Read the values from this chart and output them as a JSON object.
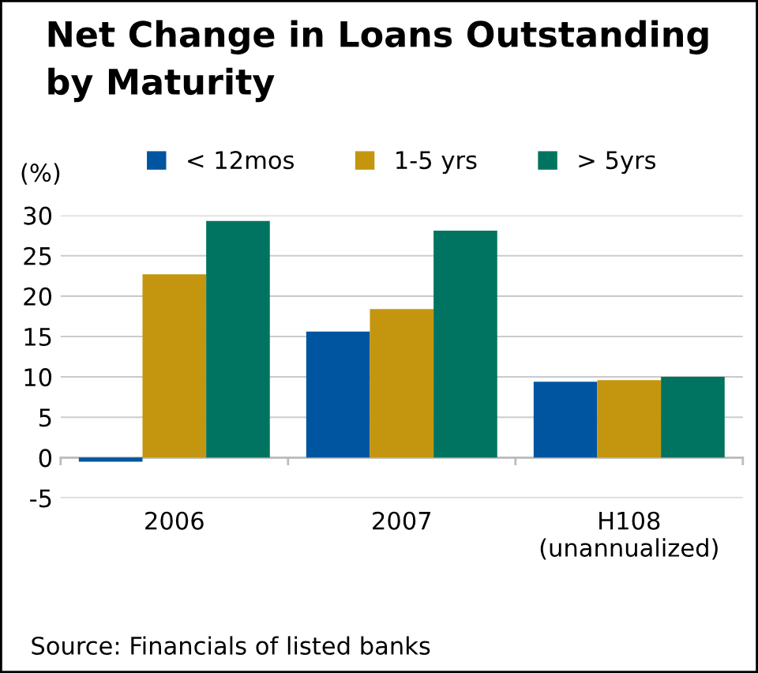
{
  "chart_data": {
    "type": "bar",
    "title": "Net Change in Loans Outstanding\nby Maturity",
    "ylabel": "(%)",
    "categories": [
      "2006",
      "2007",
      "H108\n(unannualized)"
    ],
    "series": [
      {
        "name": "< 12mos",
        "color": "#0055a0",
        "values": [
          -0.5,
          15.6,
          9.4
        ]
      },
      {
        "name": "1-5 yrs",
        "color": "#c4960f",
        "values": [
          22.7,
          18.4,
          9.6
        ]
      },
      {
        "name": "> 5yrs",
        "color": "#007460",
        "values": [
          29.3,
          28.1,
          10.0
        ]
      }
    ],
    "ylim": [
      -5,
      30
    ],
    "yticks": [
      -5,
      0,
      5,
      10,
      15,
      20,
      25,
      30
    ],
    "grid": "y",
    "legend": "top",
    "annotations": [
      "Source: Financials of listed banks"
    ]
  }
}
